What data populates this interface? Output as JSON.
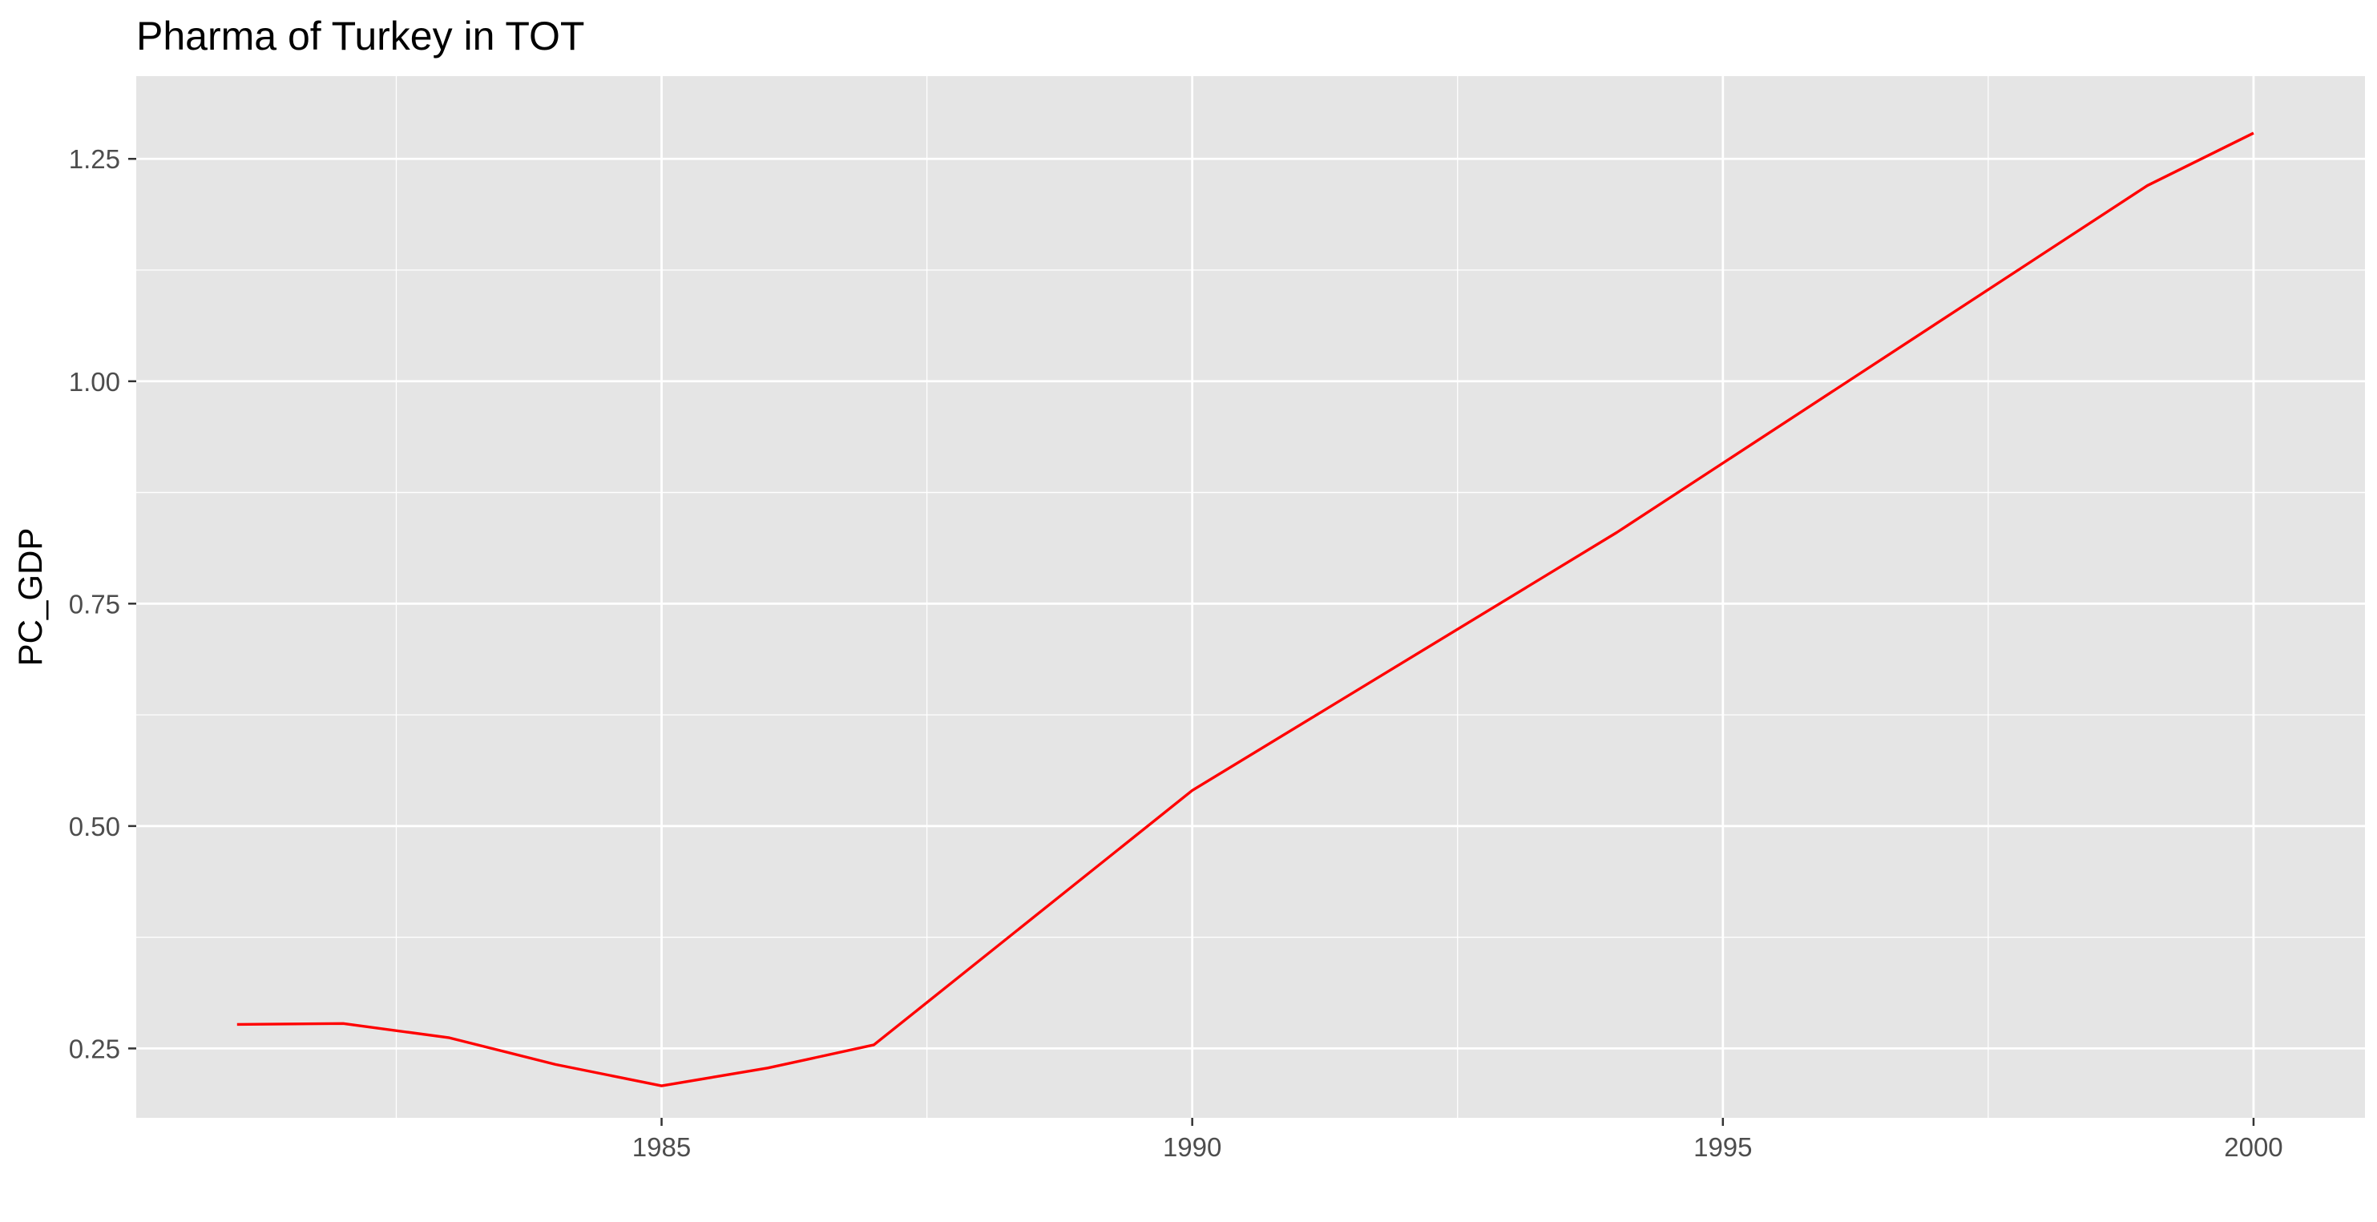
{
  "chart_data": {
    "type": "line",
    "title": "Pharma of Turkey in TOT",
    "xlabel": "",
    "ylabel": "PC_GDP",
    "xlim": [
      1980.05,
      2001.05
    ],
    "ylim": [
      0.172,
      1.343
    ],
    "x_ticks": [
      1985,
      1990,
      1995,
      2000
    ],
    "x_tick_labels": [
      "1985",
      "1990",
      "1995",
      "2000"
    ],
    "y_ticks": [
      0.25,
      0.5,
      0.75,
      1.0,
      1.25
    ],
    "y_tick_labels": [
      "0.25",
      "0.50",
      "0.75",
      "1.00",
      "1.25"
    ],
    "grid": true,
    "legend": "none",
    "colors": {
      "panel_background": "#e5e5e5",
      "grid": "#ffffff",
      "line": "#ff0000"
    },
    "series": [
      {
        "x": [
          1981,
          1982,
          1983,
          1984,
          1985,
          1986,
          1987,
          1990,
          1994,
          1999,
          2000
        ],
        "y": [
          0.277,
          0.278,
          0.262,
          0.232,
          0.208,
          0.228,
          0.254,
          0.54,
          0.83,
          1.22,
          1.279
        ]
      }
    ]
  }
}
